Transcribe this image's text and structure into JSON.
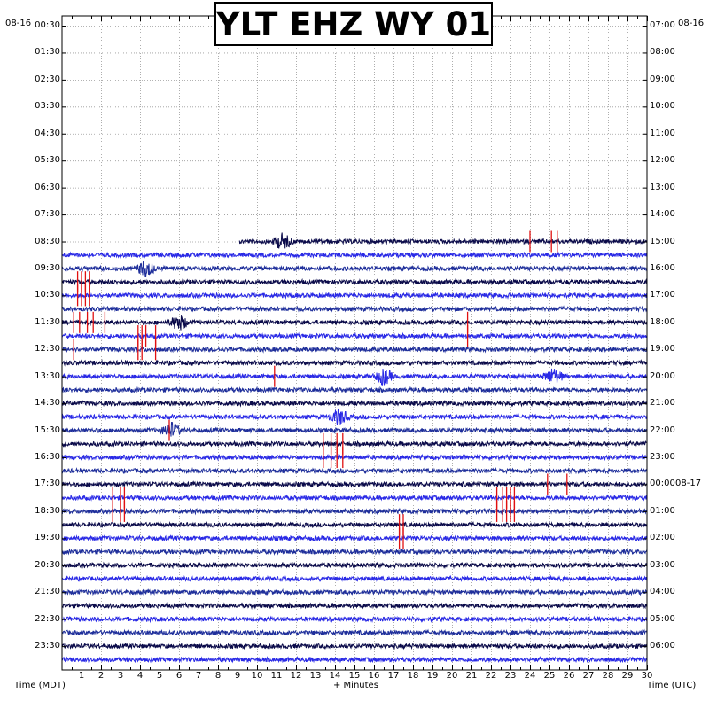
{
  "chart_data": {
    "type": "line",
    "title": "YLT EHZ WY 01",
    "date_left": "08-16",
    "date_right": "08-16",
    "date_right_next": "08-17",
    "xlabel_left": "Time (MDT)",
    "xlabel_center": "+ Minutes",
    "xlabel_right": "Time (UTC)",
    "xlim": [
      0,
      30
    ],
    "x_ticks": [
      "1",
      "2",
      "3",
      "4",
      "5",
      "6",
      "7",
      "8",
      "9",
      "10",
      "11",
      "12",
      "13",
      "14",
      "15",
      "16",
      "17",
      "18",
      "19",
      "20",
      "21",
      "22",
      "23",
      "24",
      "25",
      "26",
      "27",
      "28",
      "29",
      "30"
    ],
    "left_tick_labels": [
      "00:30",
      "01:30",
      "02:30",
      "03:30",
      "04:30",
      "05:30",
      "06:30",
      "07:30",
      "08:30",
      "09:30",
      "10:30",
      "11:30",
      "12:30",
      "13:30",
      "14:30",
      "15:30",
      "16:30",
      "17:30",
      "18:30",
      "19:30",
      "20:30",
      "21:30",
      "22:30",
      "23:30"
    ],
    "right_tick_labels": [
      "07:00",
      "08:00",
      "09:00",
      "10:00",
      "11:00",
      "12:00",
      "13:00",
      "14:00",
      "15:00",
      "16:00",
      "17:00",
      "18:00",
      "19:00",
      "20:00",
      "21:00",
      "22:00",
      "23:00",
      "00:00",
      "01:00",
      "02:00",
      "03:00",
      "04:00",
      "05:00",
      "06:00"
    ],
    "row_minutes": 30,
    "rows_total": 48,
    "data_start": {
      "row": 16,
      "minute": 9.1
    },
    "trace_colors": [
      "#1f2f9b",
      "#0b0b4a",
      "#2a2ae6"
    ],
    "clip_color": "#e01010",
    "clip_events": [
      {
        "row": 16,
        "minutes": [
          24.0,
          25.1,
          25.4
        ]
      },
      {
        "row": 19,
        "minutes": [
          0.8,
          1.0,
          1.2,
          1.4
        ]
      },
      {
        "row": 20,
        "minutes": [
          0.8,
          1.0,
          1.2,
          1.4
        ]
      },
      {
        "row": 22,
        "minutes": [
          0.6,
          0.9,
          1.3,
          1.6,
          2.2,
          20.8
        ]
      },
      {
        "row": 23,
        "minutes": [
          3.9,
          4.1,
          4.3,
          4.8,
          20.8
        ]
      },
      {
        "row": 24,
        "minutes": [
          3.9,
          4.1,
          4.8,
          0.6
        ]
      },
      {
        "row": 26,
        "minutes": [
          10.9
        ]
      },
      {
        "row": 30,
        "minutes": [
          5.5
        ]
      },
      {
        "row": 31,
        "minutes": [
          13.4,
          13.8,
          14.1,
          14.4
        ]
      },
      {
        "row": 32,
        "minutes": [
          13.4,
          13.8,
          14.1,
          14.4
        ]
      },
      {
        "row": 34,
        "minutes": [
          24.9,
          25.9
        ]
      },
      {
        "row": 35,
        "minutes": [
          2.6,
          3.0,
          3.2,
          22.3,
          22.6,
          22.8,
          23.0,
          23.2
        ]
      },
      {
        "row": 36,
        "minutes": [
          2.6,
          3.0,
          3.2,
          22.3,
          22.6,
          22.8,
          23.0,
          23.2
        ]
      },
      {
        "row": 37,
        "minutes": [
          17.3,
          17.5
        ]
      },
      {
        "row": 38,
        "minutes": [
          17.3,
          17.5
        ]
      }
    ],
    "events": [
      {
        "row": 16,
        "minute": 11.3
      },
      {
        "row": 18,
        "minute": 4.3
      },
      {
        "row": 22,
        "minute": 6.0
      },
      {
        "row": 26,
        "minute": 16.5
      },
      {
        "row": 26,
        "minute": 25.2
      },
      {
        "row": 29,
        "minute": 14.2
      },
      {
        "row": 30,
        "minute": 5.6
      }
    ],
    "grid": true
  }
}
